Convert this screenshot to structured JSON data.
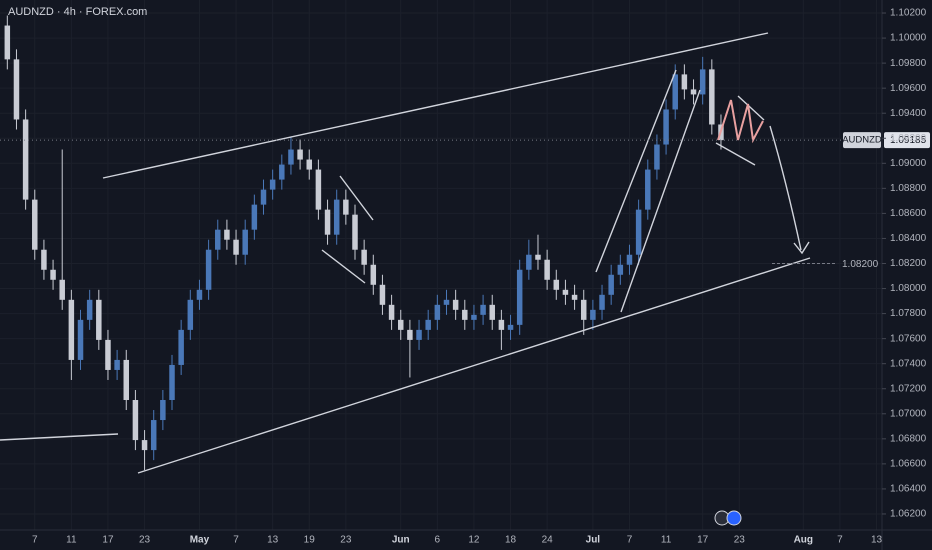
{
  "chart_data": {
    "type": "candlestick",
    "title": "AUDNZD · 4h · FOREX.com",
    "symbol": "AUDNZD",
    "last_price": 1.09185,
    "target": {
      "value": 1.082,
      "label": "1.08200"
    },
    "up_color": "#4a78b8",
    "down_color": "#c9ccd4",
    "grid": true,
    "xlim": [
      -3.8,
      92.6
    ],
    "ylim": [
      1.06072,
      1.10304
    ],
    "x": [
      -3,
      -2,
      -1,
      0,
      1,
      2,
      3,
      4,
      5,
      6,
      7,
      8,
      9,
      10,
      11,
      12,
      13,
      14,
      15,
      16,
      17,
      18,
      19,
      20,
      21,
      22,
      23,
      24,
      25,
      26,
      27,
      28,
      29,
      30,
      31,
      32,
      33,
      34,
      35,
      36,
      37,
      38,
      39,
      40,
      41,
      42,
      43,
      44,
      45,
      46,
      47,
      48,
      49,
      50,
      51,
      52,
      53,
      54,
      55,
      56,
      57,
      58,
      59,
      60,
      61,
      62,
      63,
      64,
      65,
      66,
      67,
      68,
      69,
      70,
      71,
      72,
      73,
      74,
      75
    ],
    "open": [
      1.101,
      1.0983,
      1.0935,
      1.0871,
      1.0831,
      1.0815,
      1.0807,
      1.0791,
      1.0743,
      1.0775,
      1.0791,
      1.0759,
      1.0735,
      1.0743,
      1.0711,
      1.0679,
      1.0671,
      1.0695,
      1.0711,
      1.0739,
      1.0767,
      1.0791,
      1.0799,
      1.0831,
      1.0847,
      1.0839,
      1.0827,
      1.0847,
      1.0867,
      1.0879,
      1.0887,
      1.0899,
      1.0911,
      1.0903,
      1.0895,
      1.0863,
      1.0843,
      1.0871,
      1.0859,
      1.0831,
      1.0819,
      1.0803,
      1.0787,
      1.0775,
      1.0767,
      1.0759,
      1.0767,
      1.0775,
      1.0787,
      1.0791,
      1.0783,
      1.0775,
      1.0779,
      1.0787,
      1.0775,
      1.0767,
      1.0771,
      1.0815,
      1.0827,
      1.0823,
      1.0807,
      1.0799,
      1.0795,
      1.0791,
      1.0775,
      1.0783,
      1.0795,
      1.0811,
      1.0819,
      1.0827,
      1.0863,
      1.0895,
      1.0915,
      1.0943,
      1.0971,
      1.0959,
      1.0955,
      1.0975,
      1.0931
    ],
    "high": [
      1.1018,
      1.0991,
      1.0943,
      1.0879,
      1.0839,
      1.0823,
      1.0911,
      1.0799,
      1.0783,
      1.0799,
      1.0799,
      1.0767,
      1.0751,
      1.0751,
      1.0719,
      1.0687,
      1.0703,
      1.0719,
      1.0747,
      1.0775,
      1.0799,
      1.0807,
      1.0839,
      1.0855,
      1.0855,
      1.0847,
      1.0855,
      1.0875,
      1.0887,
      1.0895,
      1.0907,
      1.0921,
      1.0919,
      1.0911,
      1.0903,
      1.0871,
      1.0879,
      1.0879,
      1.0867,
      1.0839,
      1.0827,
      1.0811,
      1.0795,
      1.0783,
      1.0775,
      1.0775,
      1.0783,
      1.0795,
      1.0799,
      1.0799,
      1.0791,
      1.0787,
      1.0795,
      1.0795,
      1.0783,
      1.0779,
      1.0823,
      1.0839,
      1.0843,
      1.0831,
      1.0815,
      1.0807,
      1.0803,
      1.0799,
      1.0791,
      1.0803,
      1.0819,
      1.0827,
      1.0835,
      1.0871,
      1.0903,
      1.0923,
      1.0951,
      1.0979,
      1.0979,
      1.0967,
      1.0985,
      1.0983,
      1.0939
    ],
    "low": [
      1.0975,
      1.0927,
      1.0863,
      1.0823,
      1.0807,
      1.0799,
      1.0783,
      1.0727,
      1.0735,
      1.0767,
      1.0751,
      1.0727,
      1.0727,
      1.0703,
      1.0671,
      1.0655,
      1.0663,
      1.0687,
      1.0703,
      1.0731,
      1.0759,
      1.0783,
      1.0791,
      1.0823,
      1.0831,
      1.0819,
      1.0819,
      1.0839,
      1.0859,
      1.0871,
      1.0879,
      1.0891,
      1.0895,
      1.0887,
      1.0855,
      1.0835,
      1.0835,
      1.0851,
      1.0823,
      1.0811,
      1.0795,
      1.0779,
      1.0767,
      1.0759,
      1.0729,
      1.0751,
      1.0759,
      1.0767,
      1.0779,
      1.0775,
      1.0767,
      1.0767,
      1.0771,
      1.0767,
      1.0751,
      1.0759,
      1.0763,
      1.0807,
      1.0815,
      1.0799,
      1.0791,
      1.0787,
      1.0783,
      1.0763,
      1.0767,
      1.0775,
      1.0787,
      1.0803,
      1.0811,
      1.0819,
      1.0855,
      1.0887,
      1.0907,
      1.0935,
      1.0951,
      1.0947,
      1.0947,
      1.0923,
      1.0911
    ],
    "close": [
      1.0983,
      1.0935,
      1.0871,
      1.0831,
      1.0815,
      1.0807,
      1.0791,
      1.0743,
      1.0775,
      1.0791,
      1.0759,
      1.0735,
      1.0743,
      1.0711,
      1.0679,
      1.0671,
      1.0695,
      1.0711,
      1.0739,
      1.0767,
      1.0791,
      1.0799,
      1.0831,
      1.0847,
      1.0839,
      1.0827,
      1.0847,
      1.0867,
      1.0879,
      1.0887,
      1.0899,
      1.0911,
      1.0903,
      1.0895,
      1.0863,
      1.0843,
      1.0871,
      1.0859,
      1.0831,
      1.0819,
      1.0803,
      1.0787,
      1.0775,
      1.0767,
      1.0759,
      1.0767,
      1.0775,
      1.0787,
      1.0791,
      1.0783,
      1.0775,
      1.0779,
      1.0787,
      1.0775,
      1.0767,
      1.0771,
      1.0815,
      1.0827,
      1.0823,
      1.0807,
      1.0799,
      1.0795,
      1.0791,
      1.0775,
      1.0783,
      1.0795,
      1.0811,
      1.0819,
      1.0827,
      1.0863,
      1.0895,
      1.0915,
      1.0943,
      1.0971,
      1.0959,
      1.0955,
      1.0975,
      1.0931,
      1.09185
    ],
    "xticks": [
      {
        "value": 0,
        "label": "7"
      },
      {
        "value": 4,
        "label": "11"
      },
      {
        "value": 8,
        "label": "17"
      },
      {
        "value": 12,
        "label": "23"
      },
      {
        "value": 18,
        "label": "May"
      },
      {
        "value": 22,
        "label": "7"
      },
      {
        "value": 26,
        "label": "13"
      },
      {
        "value": 30,
        "label": "19"
      },
      {
        "value": 34,
        "label": "23"
      },
      {
        "value": 40,
        "label": "Jun"
      },
      {
        "value": 44,
        "label": "6"
      },
      {
        "value": 48,
        "label": "12"
      },
      {
        "value": 52,
        "label": "18"
      },
      {
        "value": 56,
        "label": "24"
      },
      {
        "value": 61,
        "label": "Jul"
      },
      {
        "value": 65,
        "label": "7"
      },
      {
        "value": 69,
        "label": "11"
      },
      {
        "value": 73,
        "label": "17"
      },
      {
        "value": 77,
        "label": "23"
      },
      {
        "value": 84,
        "label": "Aug"
      },
      {
        "value": 88,
        "label": "7"
      },
      {
        "value": 92,
        "label": "13"
      }
    ],
    "yticks": [
      {
        "value": 1.102,
        "label": "1.10200"
      },
      {
        "value": 1.1,
        "label": "1.10000"
      },
      {
        "value": 1.098,
        "label": "1.09800"
      },
      {
        "value": 1.096,
        "label": "1.09600"
      },
      {
        "value": 1.094,
        "label": "1.09400"
      },
      {
        "value": 1.092,
        "label": "1.09200"
      },
      {
        "value": 1.09,
        "label": "1.09000"
      },
      {
        "value": 1.088,
        "label": "1.08800"
      },
      {
        "value": 1.086,
        "label": "1.08600"
      },
      {
        "value": 1.084,
        "label": "1.08400"
      },
      {
        "value": 1.082,
        "label": "1.08200"
      },
      {
        "value": 1.08,
        "label": "1.08000"
      },
      {
        "value": 1.078,
        "label": "1.07800"
      },
      {
        "value": 1.076,
        "label": "1.07600"
      },
      {
        "value": 1.074,
        "label": "1.07400"
      },
      {
        "value": 1.072,
        "label": "1.07200"
      },
      {
        "value": 1.07,
        "label": "1.07000"
      },
      {
        "value": 1.068,
        "label": "1.06800"
      },
      {
        "value": 1.066,
        "label": "1.06600"
      },
      {
        "value": 1.064,
        "label": "1.06400"
      },
      {
        "value": 1.062,
        "label": "1.06200"
      }
    ]
  }
}
